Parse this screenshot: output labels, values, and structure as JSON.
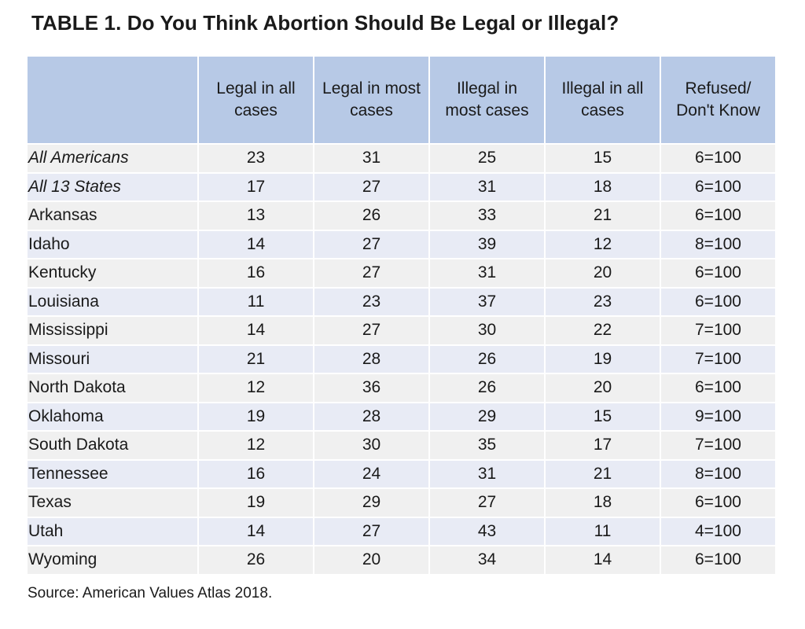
{
  "title": "TABLE 1. Do You Think Abortion Should Be Legal or Illegal?",
  "columns": [
    {
      "line1": "Legal in all",
      "line2": "cases"
    },
    {
      "line1": "Legal in most",
      "line2": "cases"
    },
    {
      "line1": "Illegal in",
      "line2": "most cases"
    },
    {
      "line1": "Illegal in all",
      "line2": "cases"
    },
    {
      "line1": "Refused/",
      "line2": "Don't Know"
    }
  ],
  "rows": [
    {
      "label": "All Americans",
      "italic": true,
      "values": [
        "23",
        "31",
        "25",
        "15",
        "6=100"
      ]
    },
    {
      "label": "All 13 States",
      "italic": true,
      "values": [
        "17",
        "27",
        "31",
        "18",
        "6=100"
      ]
    },
    {
      "label": "Arkansas",
      "italic": false,
      "values": [
        "13",
        "26",
        "33",
        "21",
        "6=100"
      ]
    },
    {
      "label": "Idaho",
      "italic": false,
      "values": [
        "14",
        "27",
        "39",
        "12",
        "8=100"
      ]
    },
    {
      "label": "Kentucky",
      "italic": false,
      "values": [
        "16",
        "27",
        "31",
        "20",
        "6=100"
      ]
    },
    {
      "label": "Louisiana",
      "italic": false,
      "values": [
        "11",
        "23",
        "37",
        "23",
        "6=100"
      ]
    },
    {
      "label": "Mississippi",
      "italic": false,
      "values": [
        "14",
        "27",
        "30",
        "22",
        "7=100"
      ]
    },
    {
      "label": "Missouri",
      "italic": false,
      "values": [
        "21",
        "28",
        "26",
        "19",
        "7=100"
      ]
    },
    {
      "label": "North Dakota",
      "italic": false,
      "values": [
        "12",
        "36",
        "26",
        "20",
        "6=100"
      ]
    },
    {
      "label": "Oklahoma",
      "italic": false,
      "values": [
        "19",
        "28",
        "29",
        "15",
        "9=100"
      ]
    },
    {
      "label": "South Dakota",
      "italic": false,
      "values": [
        "12",
        "30",
        "35",
        "17",
        "7=100"
      ]
    },
    {
      "label": "Tennessee",
      "italic": false,
      "values": [
        "16",
        "24",
        "31",
        "21",
        "8=100"
      ]
    },
    {
      "label": "Texas",
      "italic": false,
      "values": [
        "19",
        "29",
        "27",
        "18",
        "6=100"
      ]
    },
    {
      "label": "Utah",
      "italic": false,
      "values": [
        "14",
        "27",
        "43",
        "11",
        "4=100"
      ]
    },
    {
      "label": "Wyoming",
      "italic": false,
      "values": [
        "26",
        "20",
        "34",
        "14",
        "6=100"
      ]
    }
  ],
  "source": "Source: American Values Atlas 2018.",
  "colors": {
    "header_bg": "#b7c9e6",
    "row_odd_bg": "#f0f0f0",
    "row_even_bg": "#e8ebf5"
  }
}
